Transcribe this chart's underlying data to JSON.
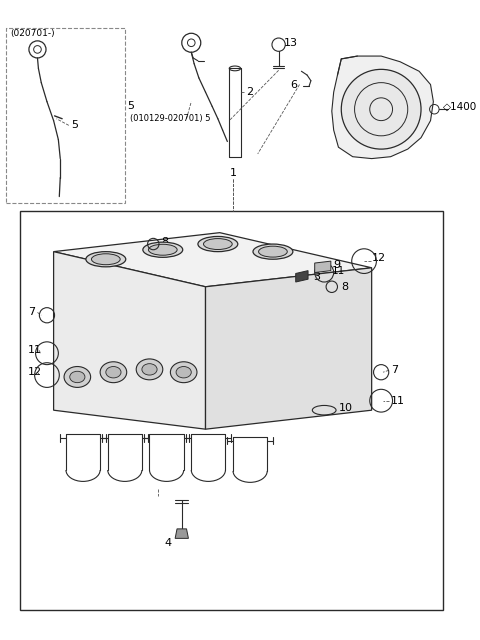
{
  "bg_color": "#ffffff",
  "lc": "#2a2a2a",
  "fig_width": 4.8,
  "fig_height": 6.4,
  "dpi": 100
}
